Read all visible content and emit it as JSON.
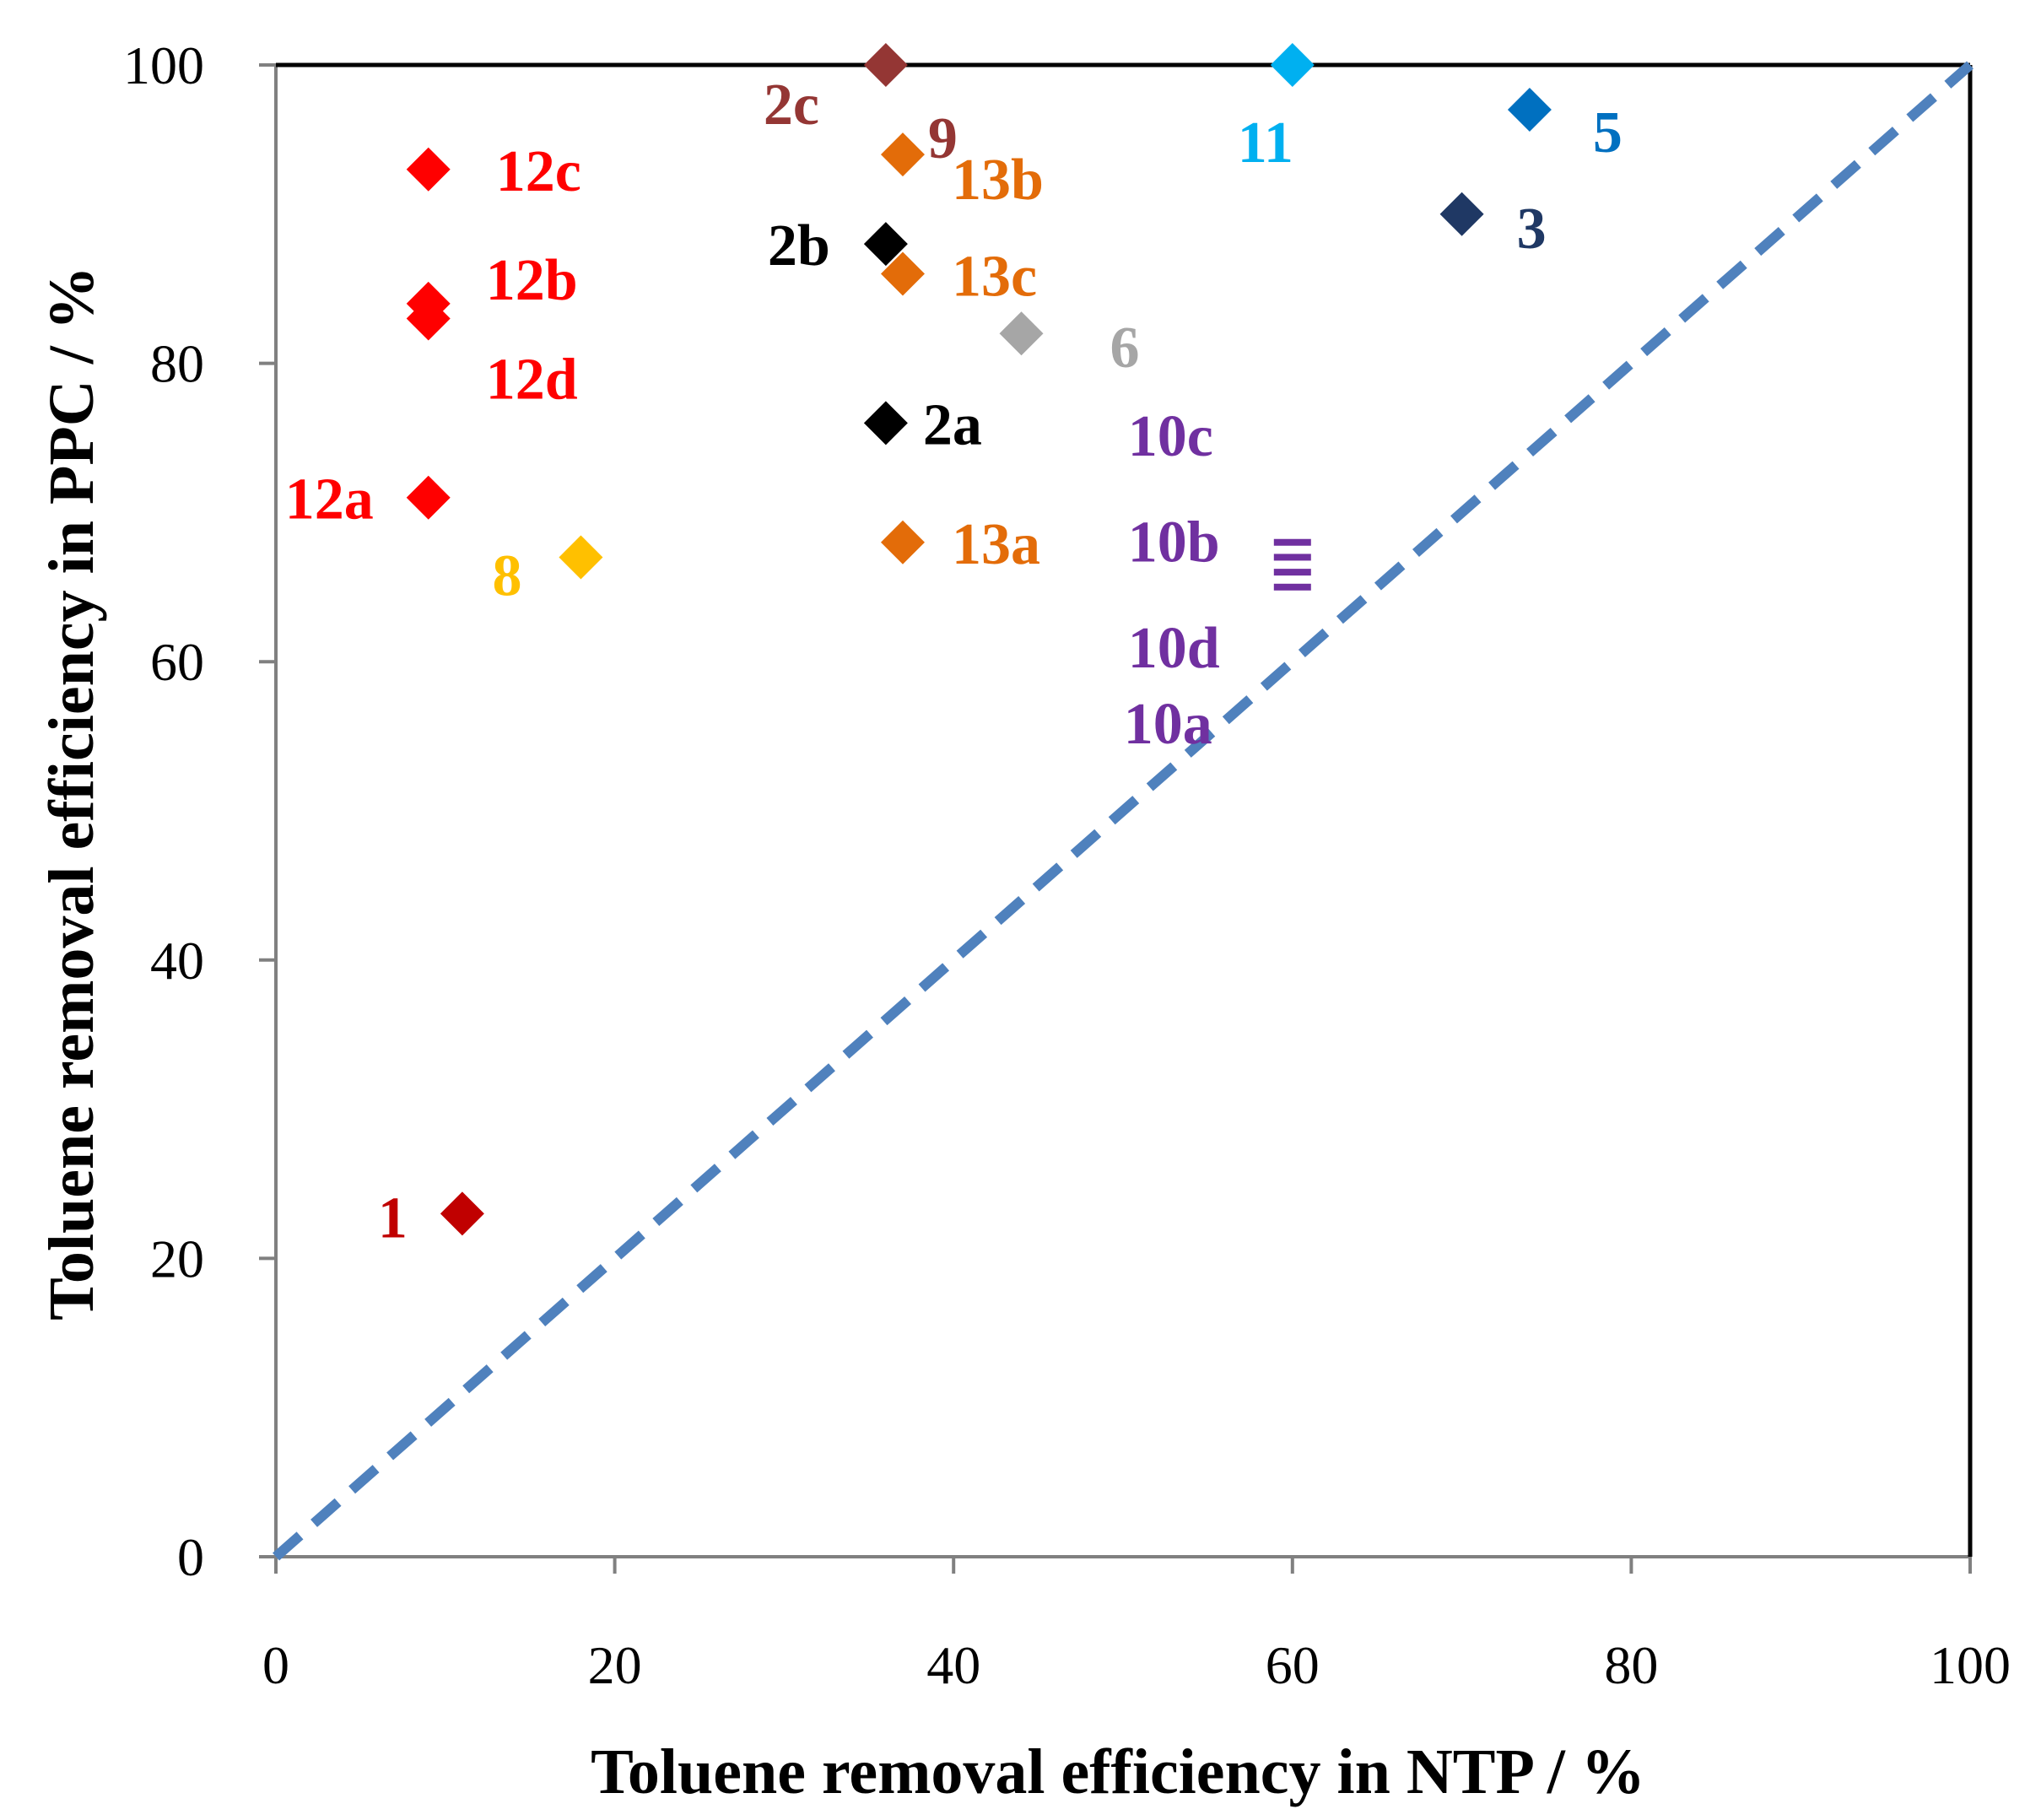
{
  "chart_data": {
    "type": "scatter",
    "xlabel": "Toluene removal efficiency in NTP / %",
    "ylabel": "Toluene removal efficiency in PPC / %",
    "xlim": [
      0,
      100
    ],
    "ylim": [
      0,
      100
    ],
    "xticks": [
      "0",
      "20",
      "40",
      "60",
      "80",
      "100"
    ],
    "yticks": [
      "0",
      "20",
      "40",
      "60",
      "80",
      "100"
    ],
    "grid": false,
    "reference_line": {
      "name": "y = x",
      "color": "#4f81bd",
      "style": "dashed"
    },
    "points": [
      {
        "label": "1",
        "x": 11,
        "y": 23,
        "color": "#c00000"
      },
      {
        "label": "2a",
        "x": 36,
        "y": 76,
        "color": "#000000"
      },
      {
        "label": "2b",
        "x": 36,
        "y": 88,
        "color": "#000000"
      },
      {
        "label": "2c",
        "x": 36,
        "y": 100,
        "color": "#943634"
      },
      {
        "label": "3",
        "x": 70,
        "y": 90,
        "color": "#1f3864"
      },
      {
        "label": "5",
        "x": 74,
        "y": 97,
        "color": "#0070c0"
      },
      {
        "label": "6",
        "x": 44,
        "y": 82,
        "color": "#a6a6a6"
      },
      {
        "label": "8",
        "x": 18,
        "y": 67,
        "color": "#ffc000"
      },
      {
        "label": "9",
        "x": 36,
        "y": 100,
        "color": "#943634"
      },
      {
        "label": "10a",
        "x": 60,
        "y": 65,
        "color": "#7030a0"
      },
      {
        "label": "10b",
        "x": 60,
        "y": 67,
        "color": "#7030a0"
      },
      {
        "label": "10c",
        "x": 60,
        "y": 68,
        "color": "#7030a0"
      },
      {
        "label": "10d",
        "x": 60,
        "y": 66,
        "color": "#7030a0"
      },
      {
        "label": "11",
        "x": 60,
        "y": 100,
        "color": "#00b0f0"
      },
      {
        "label": "12a",
        "x": 9,
        "y": 71,
        "color": "#ff0000"
      },
      {
        "label": "12b",
        "x": 9,
        "y": 84,
        "color": "#ff0000"
      },
      {
        "label": "12c",
        "x": 9,
        "y": 93,
        "color": "#ff0000"
      },
      {
        "label": "12d",
        "x": 9,
        "y": 83,
        "color": "#ff0000"
      },
      {
        "label": "13a",
        "x": 37,
        "y": 68,
        "color": "#e36c09"
      },
      {
        "label": "13b",
        "x": 37,
        "y": 94,
        "color": "#e36c09"
      },
      {
        "label": "13c",
        "x": 37,
        "y": 86,
        "color": "#e36c09"
      }
    ]
  }
}
